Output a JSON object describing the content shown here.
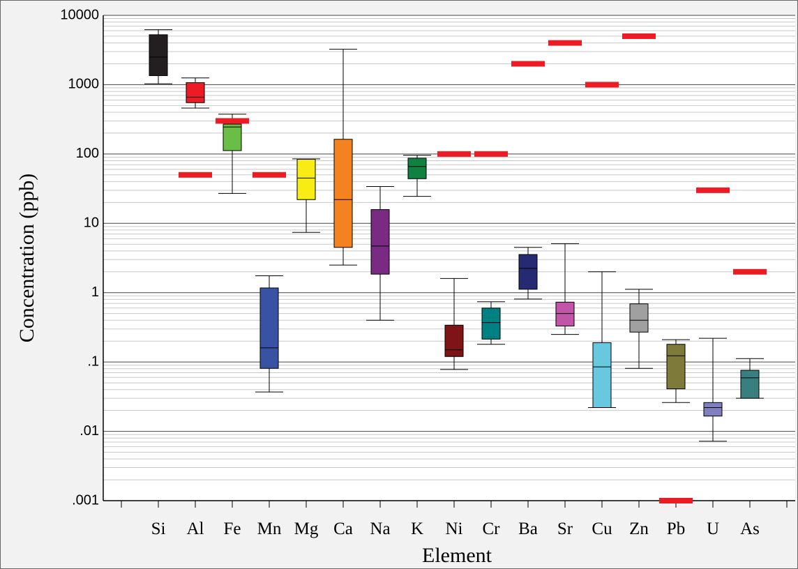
{
  "chart_data": {
    "type": "box",
    "x_label": "Element",
    "y_label": "Concentration (ppb)",
    "log_scale": true,
    "grid": true,
    "minor_grid": true,
    "categories": [
      "Si",
      "Al",
      "Fe",
      "Mn",
      "Mg",
      "Ca",
      "Na",
      "K",
      "Ni",
      "Cr",
      "Ba",
      "Sr",
      "Cu",
      "Zn",
      "Pb",
      "U",
      "As"
    ],
    "colors": [
      "#231f20",
      "#ed1c24",
      "#6abd45",
      "#3953a4",
      "#f7ec13",
      "#f58220",
      "#7b2a83",
      "#0f8140",
      "#7f1416",
      "#008080",
      "#262a73",
      "#c255a8",
      "#67c8e0",
      "#a0a0a0",
      "#7e7a3a",
      "#8080c0",
      "#3a7f7f"
    ],
    "min": [
      1030,
      460,
      27,
      0.037,
      7.4,
      2.5,
      0.4,
      24.5,
      0.078,
      0.18,
      0.81,
      0.25,
      0.022,
      0.081,
      0.026,
      0.0072,
      0.03
    ],
    "q1": [
      1350,
      550,
      112,
      0.081,
      22,
      4.5,
      1.85,
      44,
      0.12,
      0.214,
      1.12,
      0.33,
      0.022,
      0.27,
      0.041,
      0.0166,
      0.03
    ],
    "median": [
      2500,
      660,
      245,
      0.16,
      45,
      22,
      4.7,
      66,
      0.15,
      0.37,
      2.24,
      0.5,
      0.085,
      0.4,
      0.123,
      0.022,
      0.059
    ],
    "q3": [
      5250,
      1070,
      270,
      1.17,
      84,
      163,
      15.8,
      87,
      0.34,
      0.6,
      3.55,
      0.73,
      0.19,
      0.69,
      0.18,
      0.026,
      0.076
    ],
    "max": [
      6200,
      1250,
      375,
      1.75,
      85,
      3240,
      34,
      96,
      1.6,
      0.74,
      4.5,
      5.1,
      2.0,
      1.12,
      0.21,
      0.22,
      0.112
    ],
    "limits": [
      null,
      50,
      300,
      50,
      null,
      null,
      null,
      null,
      100,
      100,
      2000,
      4000,
      1000,
      5000,
      0.001,
      30,
      2
    ],
    "limit_color": "#ed1c24",
    "ylim": [
      0.001,
      10000
    ],
    "yticks": [
      10000,
      1000,
      100,
      10,
      1,
      {
        "value": 0.1,
        "label": ".1"
      },
      {
        "value": 0.01,
        "label": ".01"
      },
      {
        "value": 0.001,
        "label": ".001"
      }
    ]
  }
}
